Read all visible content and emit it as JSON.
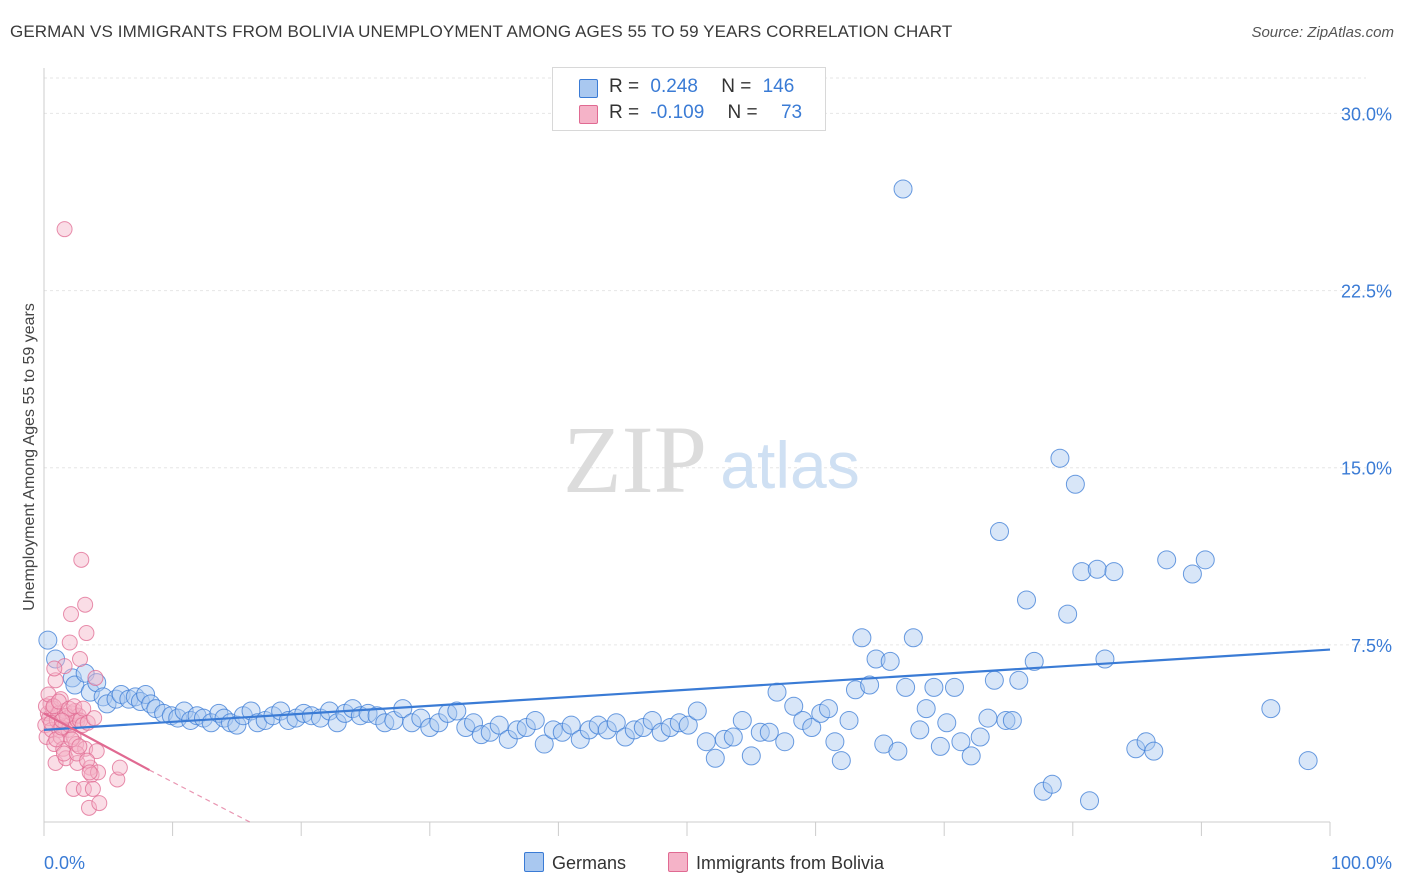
{
  "title": "GERMAN VS IMMIGRANTS FROM BOLIVIA UNEMPLOYMENT AMONG AGES 55 TO 59 YEARS CORRELATION CHART",
  "source": "Source: ZipAtlas.com",
  "watermark": {
    "zip": "ZIP",
    "atlas": "atlas"
  },
  "legend": {
    "germans": {
      "r_label": "R =",
      "r_value": "0.248",
      "n_label": "N =",
      "n_value": "146"
    },
    "bolivia": {
      "r_label": "R =",
      "r_value": "-0.109",
      "n_label": "N =",
      "n_value": "73"
    }
  },
  "bottom_legend": {
    "germans": "Germans",
    "bolivia": "Immigrants from Bolivia"
  },
  "colors": {
    "blue": "#3a7bd5",
    "blue_fill": "#a9c8f0",
    "pink": "#e06a92",
    "pink_fill": "#f5b3c8",
    "grid": "#e6e6e6"
  },
  "chart_data": {
    "type": "scatter",
    "title": "GERMAN VS IMMIGRANTS FROM BOLIVIA UNEMPLOYMENT AMONG AGES 55 TO 59 YEARS CORRELATION CHART",
    "xlabel": "",
    "ylabel": "Unemployment Among Ages 55 to 59 years",
    "xlim": [
      0,
      100
    ],
    "ylim": [
      0,
      31.5
    ],
    "x_tick_labels": [
      "0.0%",
      "100.0%"
    ],
    "y_ticks": [
      7.5,
      15.0,
      22.5,
      30.0
    ],
    "y_tick_labels": [
      "7.5%",
      "15.0%",
      "22.5%",
      "30.0%"
    ],
    "grid": true,
    "series": [
      {
        "name": "Germans",
        "trend": {
          "x": [
            0,
            100
          ],
          "y": [
            3.9,
            7.3
          ]
        },
        "points": [
          [
            0.3,
            7.7
          ],
          [
            0.9,
            6.9
          ],
          [
            2.2,
            6.1
          ],
          [
            2.4,
            5.8
          ],
          [
            3.2,
            6.3
          ],
          [
            3.6,
            5.5
          ],
          [
            4.1,
            5.9
          ],
          [
            4.6,
            5.3
          ],
          [
            4.9,
            5.0
          ],
          [
            5.6,
            5.2
          ],
          [
            6.0,
            5.4
          ],
          [
            6.6,
            5.2
          ],
          [
            7.1,
            5.3
          ],
          [
            7.5,
            5.1
          ],
          [
            7.9,
            5.4
          ],
          [
            8.3,
            5.0
          ],
          [
            8.7,
            4.8
          ],
          [
            9.3,
            4.6
          ],
          [
            9.9,
            4.5
          ],
          [
            10.4,
            4.4
          ],
          [
            10.9,
            4.7
          ],
          [
            11.4,
            4.3
          ],
          [
            11.9,
            4.5
          ],
          [
            12.4,
            4.4
          ],
          [
            13.0,
            4.2
          ],
          [
            13.6,
            4.6
          ],
          [
            14.0,
            4.4
          ],
          [
            14.5,
            4.2
          ],
          [
            15.0,
            4.1
          ],
          [
            15.5,
            4.5
          ],
          [
            16.1,
            4.7
          ],
          [
            16.6,
            4.2
          ],
          [
            17.2,
            4.3
          ],
          [
            17.8,
            4.5
          ],
          [
            18.4,
            4.7
          ],
          [
            19.0,
            4.3
          ],
          [
            19.6,
            4.4
          ],
          [
            20.2,
            4.6
          ],
          [
            20.8,
            4.5
          ],
          [
            21.5,
            4.4
          ],
          [
            22.2,
            4.7
          ],
          [
            22.8,
            4.2
          ],
          [
            23.4,
            4.6
          ],
          [
            24.0,
            4.8
          ],
          [
            24.6,
            4.5
          ],
          [
            25.2,
            4.6
          ],
          [
            25.9,
            4.5
          ],
          [
            26.5,
            4.2
          ],
          [
            27.2,
            4.3
          ],
          [
            27.9,
            4.8
          ],
          [
            28.6,
            4.2
          ],
          [
            29.3,
            4.4
          ],
          [
            30.0,
            4.0
          ],
          [
            30.7,
            4.2
          ],
          [
            31.4,
            4.6
          ],
          [
            32.1,
            4.7
          ],
          [
            32.8,
            4.0
          ],
          [
            33.4,
            4.2
          ],
          [
            34.0,
            3.7
          ],
          [
            34.7,
            3.8
          ],
          [
            35.4,
            4.1
          ],
          [
            36.1,
            3.5
          ],
          [
            36.8,
            3.9
          ],
          [
            37.5,
            4.0
          ],
          [
            38.2,
            4.3
          ],
          [
            38.9,
            3.3
          ],
          [
            39.6,
            3.9
          ],
          [
            40.3,
            3.8
          ],
          [
            41.0,
            4.1
          ],
          [
            41.7,
            3.5
          ],
          [
            42.4,
            3.9
          ],
          [
            43.1,
            4.1
          ],
          [
            43.8,
            3.9
          ],
          [
            44.5,
            4.2
          ],
          [
            45.2,
            3.6
          ],
          [
            45.9,
            3.9
          ],
          [
            46.6,
            4.0
          ],
          [
            47.3,
            4.3
          ],
          [
            48.0,
            3.8
          ],
          [
            48.7,
            4.0
          ],
          [
            49.4,
            4.2
          ],
          [
            50.1,
            4.1
          ],
          [
            50.8,
            4.7
          ],
          [
            51.5,
            3.4
          ],
          [
            52.2,
            2.7
          ],
          [
            52.9,
            3.5
          ],
          [
            53.6,
            3.6
          ],
          [
            54.3,
            4.3
          ],
          [
            55.0,
            2.8
          ],
          [
            55.7,
            3.8
          ],
          [
            56.4,
            3.8
          ],
          [
            57.0,
            5.5
          ],
          [
            57.6,
            3.4
          ],
          [
            58.3,
            4.9
          ],
          [
            59.0,
            4.3
          ],
          [
            59.7,
            4.0
          ],
          [
            60.4,
            4.6
          ],
          [
            61.0,
            4.8
          ],
          [
            61.5,
            3.4
          ],
          [
            62.0,
            2.6
          ],
          [
            62.6,
            4.3
          ],
          [
            63.1,
            5.6
          ],
          [
            63.6,
            7.8
          ],
          [
            64.2,
            5.8
          ],
          [
            64.7,
            6.9
          ],
          [
            65.3,
            3.3
          ],
          [
            65.8,
            6.8
          ],
          [
            66.4,
            3.0
          ],
          [
            67.0,
            5.7
          ],
          [
            67.6,
            7.8
          ],
          [
            68.1,
            3.9
          ],
          [
            68.6,
            4.8
          ],
          [
            69.2,
            5.7
          ],
          [
            69.7,
            3.2
          ],
          [
            70.2,
            4.2
          ],
          [
            70.8,
            5.7
          ],
          [
            71.3,
            3.4
          ],
          [
            72.1,
            2.8
          ],
          [
            72.8,
            3.6
          ],
          [
            73.4,
            4.4
          ],
          [
            73.9,
            6.0
          ],
          [
            74.3,
            12.3
          ],
          [
            74.8,
            4.3
          ],
          [
            75.3,
            4.3
          ],
          [
            75.8,
            6.0
          ],
          [
            76.4,
            9.4
          ],
          [
            77.0,
            6.8
          ],
          [
            77.7,
            1.3
          ],
          [
            78.4,
            1.6
          ],
          [
            79.0,
            15.4
          ],
          [
            79.6,
            8.8
          ],
          [
            80.2,
            14.3
          ],
          [
            80.7,
            10.6
          ],
          [
            81.3,
            0.9
          ],
          [
            81.9,
            10.7
          ],
          [
            82.5,
            6.9
          ],
          [
            83.2,
            10.6
          ],
          [
            84.9,
            3.1
          ],
          [
            85.7,
            3.4
          ],
          [
            86.3,
            3.0
          ],
          [
            87.3,
            11.1
          ],
          [
            89.3,
            10.5
          ],
          [
            90.3,
            11.1
          ],
          [
            95.4,
            4.8
          ],
          [
            98.3,
            2.6
          ],
          [
            66.8,
            26.8
          ]
        ]
      },
      {
        "name": "Immigrants from Bolivia",
        "trend": {
          "x": [
            0,
            8.2
          ],
          "y": [
            4.6,
            2.2
          ],
          "dashed_to": {
            "x": 16,
            "y": 0.0
          }
        },
        "points": [
          [
            0.1,
            4.1
          ],
          [
            0.2,
            3.6
          ],
          [
            0.3,
            4.6
          ],
          [
            0.4,
            4.4
          ],
          [
            0.5,
            5.0
          ],
          [
            0.6,
            3.9
          ],
          [
            0.7,
            4.8
          ],
          [
            0.8,
            3.3
          ],
          [
            0.9,
            2.5
          ],
          [
            0.9,
            6.0
          ],
          [
            1.0,
            4.3
          ],
          [
            1.1,
            4.6
          ],
          [
            1.2,
            3.9
          ],
          [
            1.3,
            3.6
          ],
          [
            1.3,
            5.2
          ],
          [
            1.4,
            4.3
          ],
          [
            1.5,
            3.1
          ],
          [
            1.6,
            4.7
          ],
          [
            1.6,
            6.6
          ],
          [
            1.7,
            2.7
          ],
          [
            1.8,
            4.4
          ],
          [
            1.9,
            3.9
          ],
          [
            2.0,
            4.1
          ],
          [
            2.0,
            7.6
          ],
          [
            2.1,
            8.8
          ],
          [
            2.2,
            4.6
          ],
          [
            2.3,
            1.4
          ],
          [
            2.3,
            3.6
          ],
          [
            2.4,
            4.7
          ],
          [
            2.5,
            3.3
          ],
          [
            2.6,
            4.3
          ],
          [
            2.6,
            2.5
          ],
          [
            2.7,
            4.5
          ],
          [
            2.8,
            4.3
          ],
          [
            2.8,
            6.9
          ],
          [
            2.9,
            11.1
          ],
          [
            3.0,
            4.1
          ],
          [
            3.1,
            1.4
          ],
          [
            3.2,
            9.2
          ],
          [
            3.2,
            3.1
          ],
          [
            3.3,
            8.0
          ],
          [
            3.4,
            4.2
          ],
          [
            3.5,
            0.6
          ],
          [
            3.6,
            2.3
          ],
          [
            3.7,
            2.0
          ],
          [
            3.8,
            1.4
          ],
          [
            3.9,
            4.4
          ],
          [
            4.0,
            6.1
          ],
          [
            4.1,
            3.0
          ],
          [
            4.2,
            2.1
          ],
          [
            4.3,
            0.8
          ],
          [
            0.15,
            4.9
          ],
          [
            0.35,
            5.4
          ],
          [
            0.55,
            4.2
          ],
          [
            0.75,
            4.9
          ],
          [
            0.95,
            3.5
          ],
          [
            1.15,
            5.1
          ],
          [
            1.35,
            4.0
          ],
          [
            1.55,
            2.9
          ],
          [
            1.75,
            4.5
          ],
          [
            1.95,
            4.8
          ],
          [
            2.15,
            3.5
          ],
          [
            2.35,
            4.9
          ],
          [
            2.55,
            2.9
          ],
          [
            2.75,
            3.2
          ],
          [
            3.05,
            4.8
          ],
          [
            3.35,
            2.6
          ],
          [
            3.55,
            2.1
          ],
          [
            0.8,
            6.5
          ],
          [
            5.7,
            1.8
          ],
          [
            5.9,
            2.3
          ],
          [
            1.4,
            4.3
          ],
          [
            1.6,
            25.1
          ]
        ]
      }
    ]
  }
}
